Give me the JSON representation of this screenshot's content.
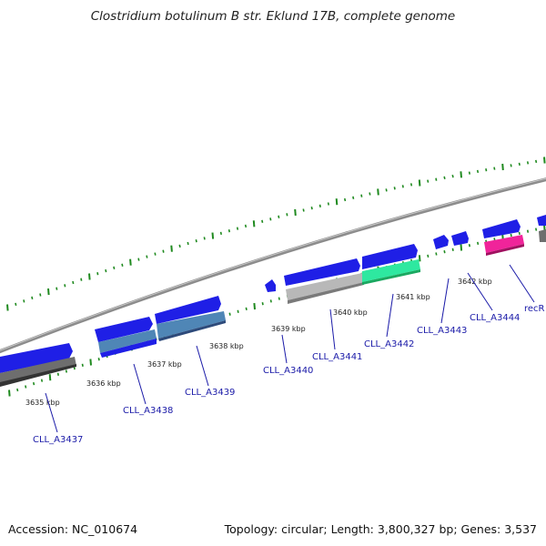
{
  "title": "Clostridium botulinum B str. Eklund 17B, complete genome",
  "footer": {
    "accession": "Accession: NC_010674",
    "stats": "Topology: circular; Length: 3,800,327 bp; Genes: 3,537"
  },
  "colors": {
    "backbone": "#8c8c8c",
    "cds": "#1f1fe6",
    "hypothetical": "#b8b8b8",
    "dark_grey": "#6e6e6e",
    "steel_blue": "#4f86b6",
    "green": "#2ee8a0",
    "pink": "#f0249a",
    "label": "#1a1aa8",
    "tick": "#1f8a1f"
  },
  "kbp_ticks": [
    {
      "label": "3635 kbp",
      "value": 3635
    },
    {
      "label": "3636 kbp",
      "value": 3636
    },
    {
      "label": "3637 kbp",
      "value": 3637
    },
    {
      "label": "3638 kbp",
      "value": 3638
    },
    {
      "label": "3639 kbp",
      "value": 3639
    },
    {
      "label": "3640 kbp",
      "value": 3640
    },
    {
      "label": "3641 kbp",
      "value": 3641
    },
    {
      "label": "3642 kbp",
      "value": 3642
    }
  ],
  "genes": [
    {
      "label": "CLL_A3437"
    },
    {
      "label": "CLL_A3438"
    },
    {
      "label": "CLL_A3439"
    },
    {
      "label": "CLL_A3440"
    },
    {
      "label": "CLL_A3441"
    },
    {
      "label": "CLL_A3442"
    },
    {
      "label": "CLL_A3443"
    },
    {
      "label": "CLL_A3444"
    },
    {
      "label": "recR"
    }
  ]
}
